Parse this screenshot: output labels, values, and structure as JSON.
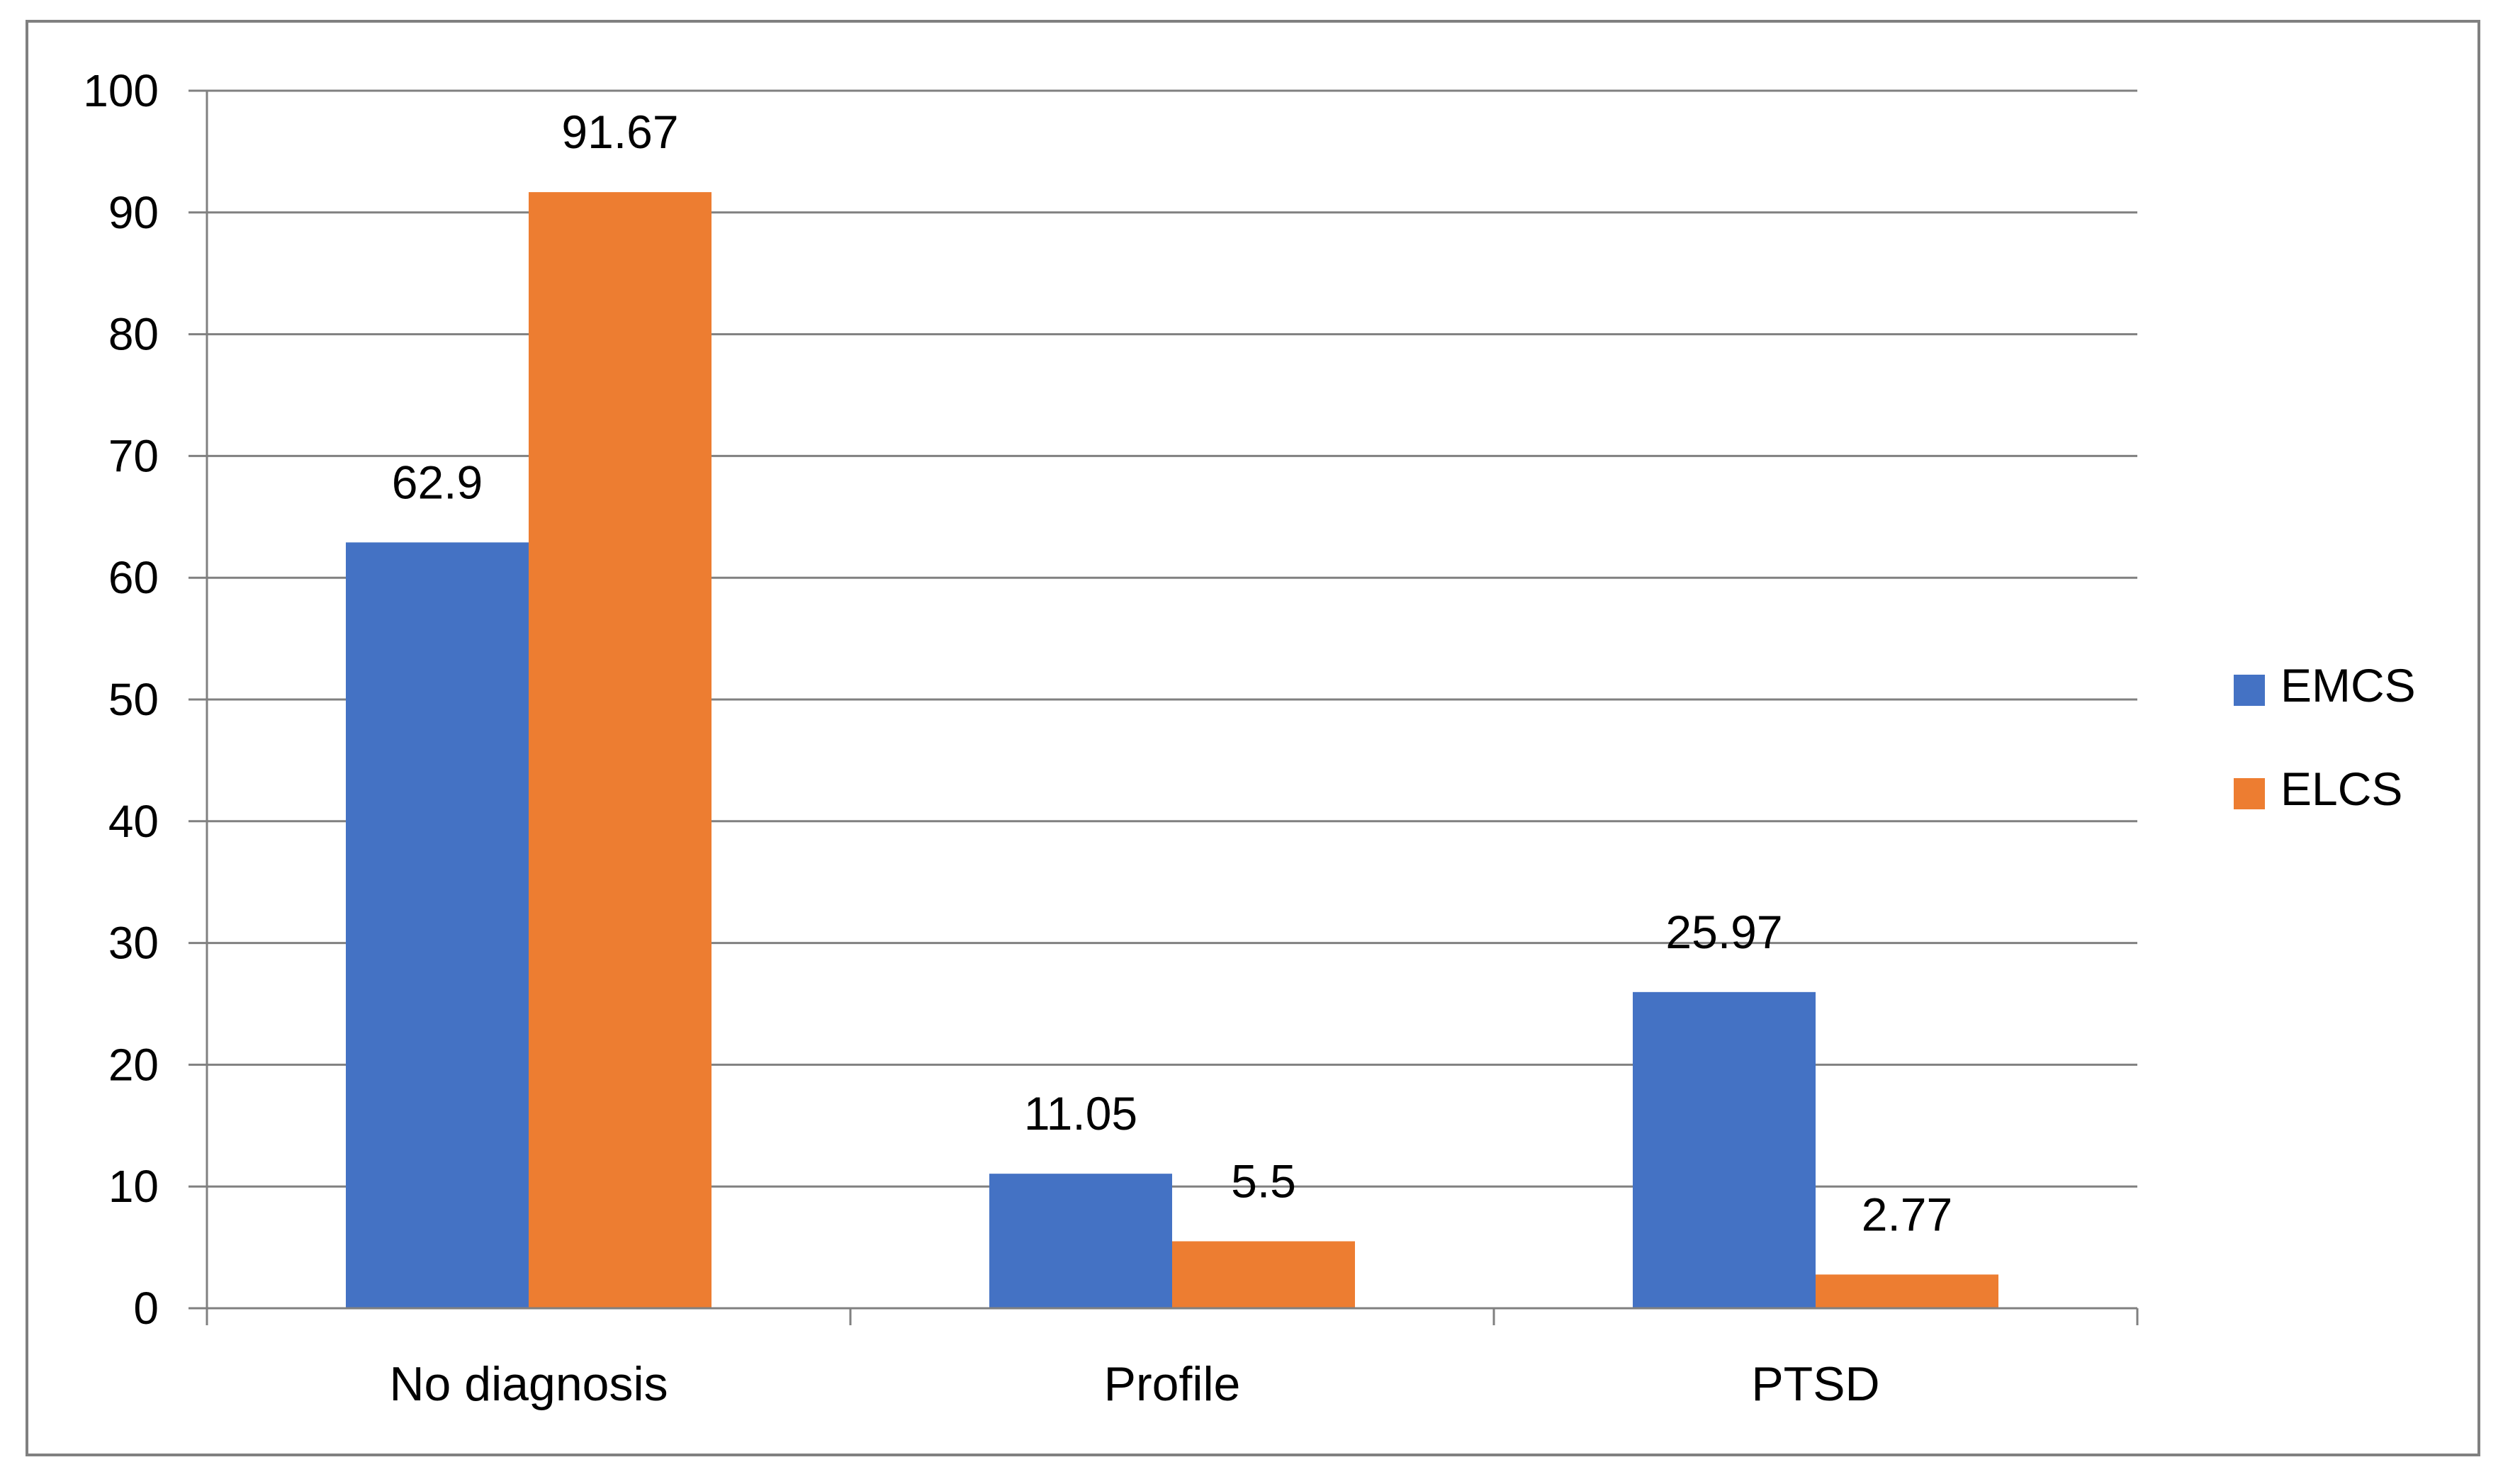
{
  "chart_data": {
    "type": "bar",
    "title": "",
    "xlabel": "",
    "ylabel": "",
    "categories": [
      "No diagnosis",
      "Profile",
      "PTSD"
    ],
    "series": [
      {
        "name": "EMCS",
        "color": "#4472C4",
        "values": [
          62.9,
          11.05,
          25.97
        ],
        "labels": [
          "62.9",
          "11.05",
          "25.97"
        ]
      },
      {
        "name": "ELCS",
        "color": "#ED7D31",
        "values": [
          91.67,
          5.5,
          2.77
        ],
        "labels": [
          "91.67",
          "5.5",
          "2.77"
        ]
      }
    ],
    "ylim": [
      0,
      100
    ],
    "yticks": [
      0,
      10,
      20,
      30,
      40,
      50,
      60,
      70,
      80,
      90,
      100
    ],
    "ytick_labels": [
      "0",
      "10",
      "20",
      "30",
      "40",
      "50",
      "60",
      "70",
      "80",
      "90",
      "100"
    ],
    "grid": true,
    "legend_position": "right",
    "colors": {
      "frame": "#808080",
      "grid": "#808080",
      "axis": "#808080"
    }
  }
}
